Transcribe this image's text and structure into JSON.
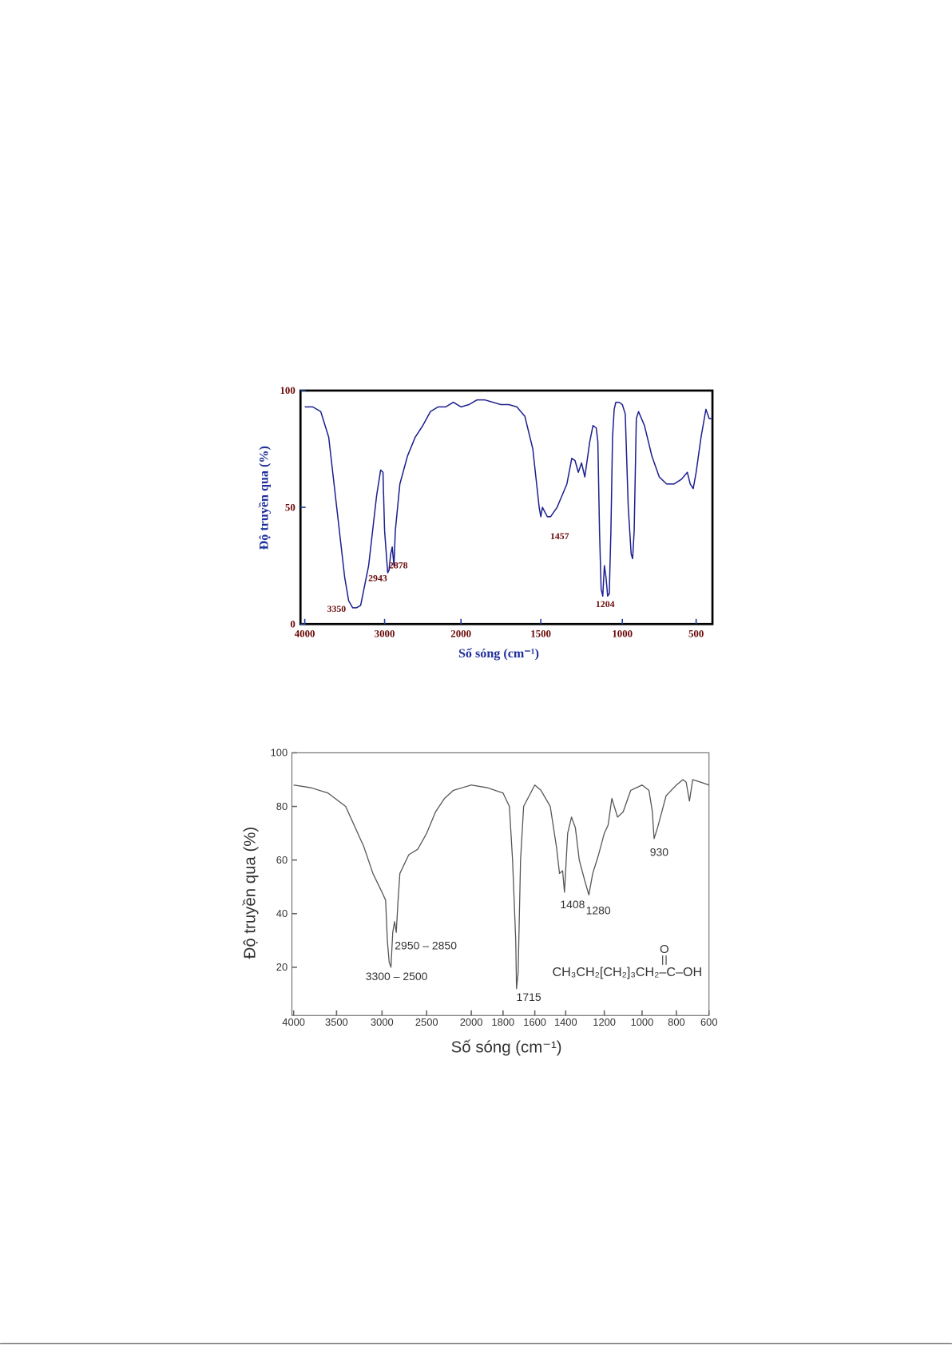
{
  "chart_data": [
    {
      "type": "line",
      "x_label": "Số sóng (cm⁻¹)",
      "y_label": "Độ truyền qua (%)",
      "color": "#1c1f8f",
      "xlim": [
        4050,
        400
      ],
      "xticks": [
        4000,
        3000,
        2000,
        1500,
        1000,
        500
      ],
      "ylim": [
        0,
        100
      ],
      "yticks": [
        0,
        50,
        100
      ],
      "annotations": [
        "3350",
        "2943",
        "2878",
        "1457",
        "1204"
      ],
      "x": [
        4000,
        3900,
        3800,
        3700,
        3600,
        3500,
        3450,
        3400,
        3350,
        3300,
        3200,
        3100,
        3050,
        3020,
        3000,
        2960,
        2943,
        2920,
        2900,
        2878,
        2860,
        2800,
        2700,
        2600,
        2500,
        2400,
        2300,
        2200,
        2100,
        2000,
        1950,
        1900,
        1850,
        1800,
        1750,
        1700,
        1650,
        1600,
        1550,
        1510,
        1500,
        1490,
        1460,
        1440,
        1400,
        1370,
        1340,
        1310,
        1290,
        1270,
        1250,
        1230,
        1200,
        1180,
        1160,
        1150,
        1140,
        1130,
        1120,
        1110,
        1100,
        1090,
        1080,
        1070,
        1060,
        1050,
        1040,
        1020,
        1000,
        980,
        960,
        940,
        930,
        920,
        905,
        890,
        850,
        800,
        750,
        700,
        650,
        600,
        560,
        540,
        520,
        500,
        470,
        440,
        420,
        400
      ],
      "values": [
        93,
        93,
        91,
        80,
        50,
        20,
        10,
        7,
        7,
        8,
        25,
        55,
        66,
        65,
        40,
        22,
        23,
        30,
        33,
        25,
        40,
        60,
        72,
        80,
        85,
        91,
        93,
        93,
        95,
        93,
        94,
        96,
        96,
        95,
        94,
        94,
        93,
        89,
        75,
        50,
        46,
        50,
        46,
        46,
        50,
        55,
        60,
        71,
        70,
        65,
        69,
        63,
        78,
        85,
        84,
        78,
        40,
        15,
        12,
        25,
        20,
        12,
        13,
        40,
        80,
        92,
        95,
        95,
        94,
        90,
        50,
        30,
        28,
        40,
        88,
        91,
        85,
        72,
        63,
        60,
        60,
        62,
        65,
        60,
        58,
        65,
        80,
        92,
        88,
        88
      ]
    },
    {
      "type": "line",
      "x_label": "Số sóng (cm⁻¹)",
      "y_label": "Độ truyền qua (%)",
      "color": "#555555",
      "xlim": [
        4000,
        600
      ],
      "xticks": [
        4000,
        3500,
        3000,
        2500,
        2000,
        1800,
        1600,
        1400,
        1200,
        1000,
        800,
        600
      ],
      "ylim": [
        2,
        100
      ],
      "yticks": [
        20,
        40,
        60,
        80,
        100
      ],
      "annotations": [
        "2950 – 2850",
        "3300 – 2500",
        "1715",
        "1408",
        "1280",
        "930"
      ],
      "formula": "CH₃CH₂[CH₂]₃CH₂–C–OH",
      "formula_top": "O",
      "x": [
        4000,
        3800,
        3600,
        3400,
        3200,
        3100,
        3000,
        2960,
        2940,
        2920,
        2900,
        2880,
        2860,
        2840,
        2820,
        2800,
        2700,
        2600,
        2500,
        2400,
        2300,
        2200,
        2100,
        2000,
        1900,
        1800,
        1760,
        1740,
        1720,
        1715,
        1705,
        1690,
        1670,
        1600,
        1560,
        1500,
        1460,
        1440,
        1420,
        1408,
        1390,
        1370,
        1350,
        1330,
        1300,
        1280,
        1260,
        1230,
        1200,
        1180,
        1160,
        1130,
        1100,
        1060,
        1000,
        960,
        940,
        930,
        910,
        860,
        800,
        760,
        740,
        720,
        700,
        650,
        600
      ],
      "values": [
        88,
        87,
        85,
        80,
        65,
        55,
        48,
        45,
        30,
        22,
        20,
        33,
        37,
        33,
        45,
        55,
        62,
        64,
        70,
        78,
        83,
        86,
        87,
        88,
        87,
        85,
        80,
        60,
        30,
        12,
        18,
        60,
        80,
        88,
        86,
        80,
        65,
        55,
        56,
        48,
        70,
        76,
        72,
        60,
        52,
        47,
        55,
        62,
        70,
        73,
        83,
        76,
        78,
        86,
        88,
        86,
        78,
        68,
        72,
        84,
        88,
        90,
        89,
        82,
        90,
        89,
        88
      ]
    }
  ]
}
